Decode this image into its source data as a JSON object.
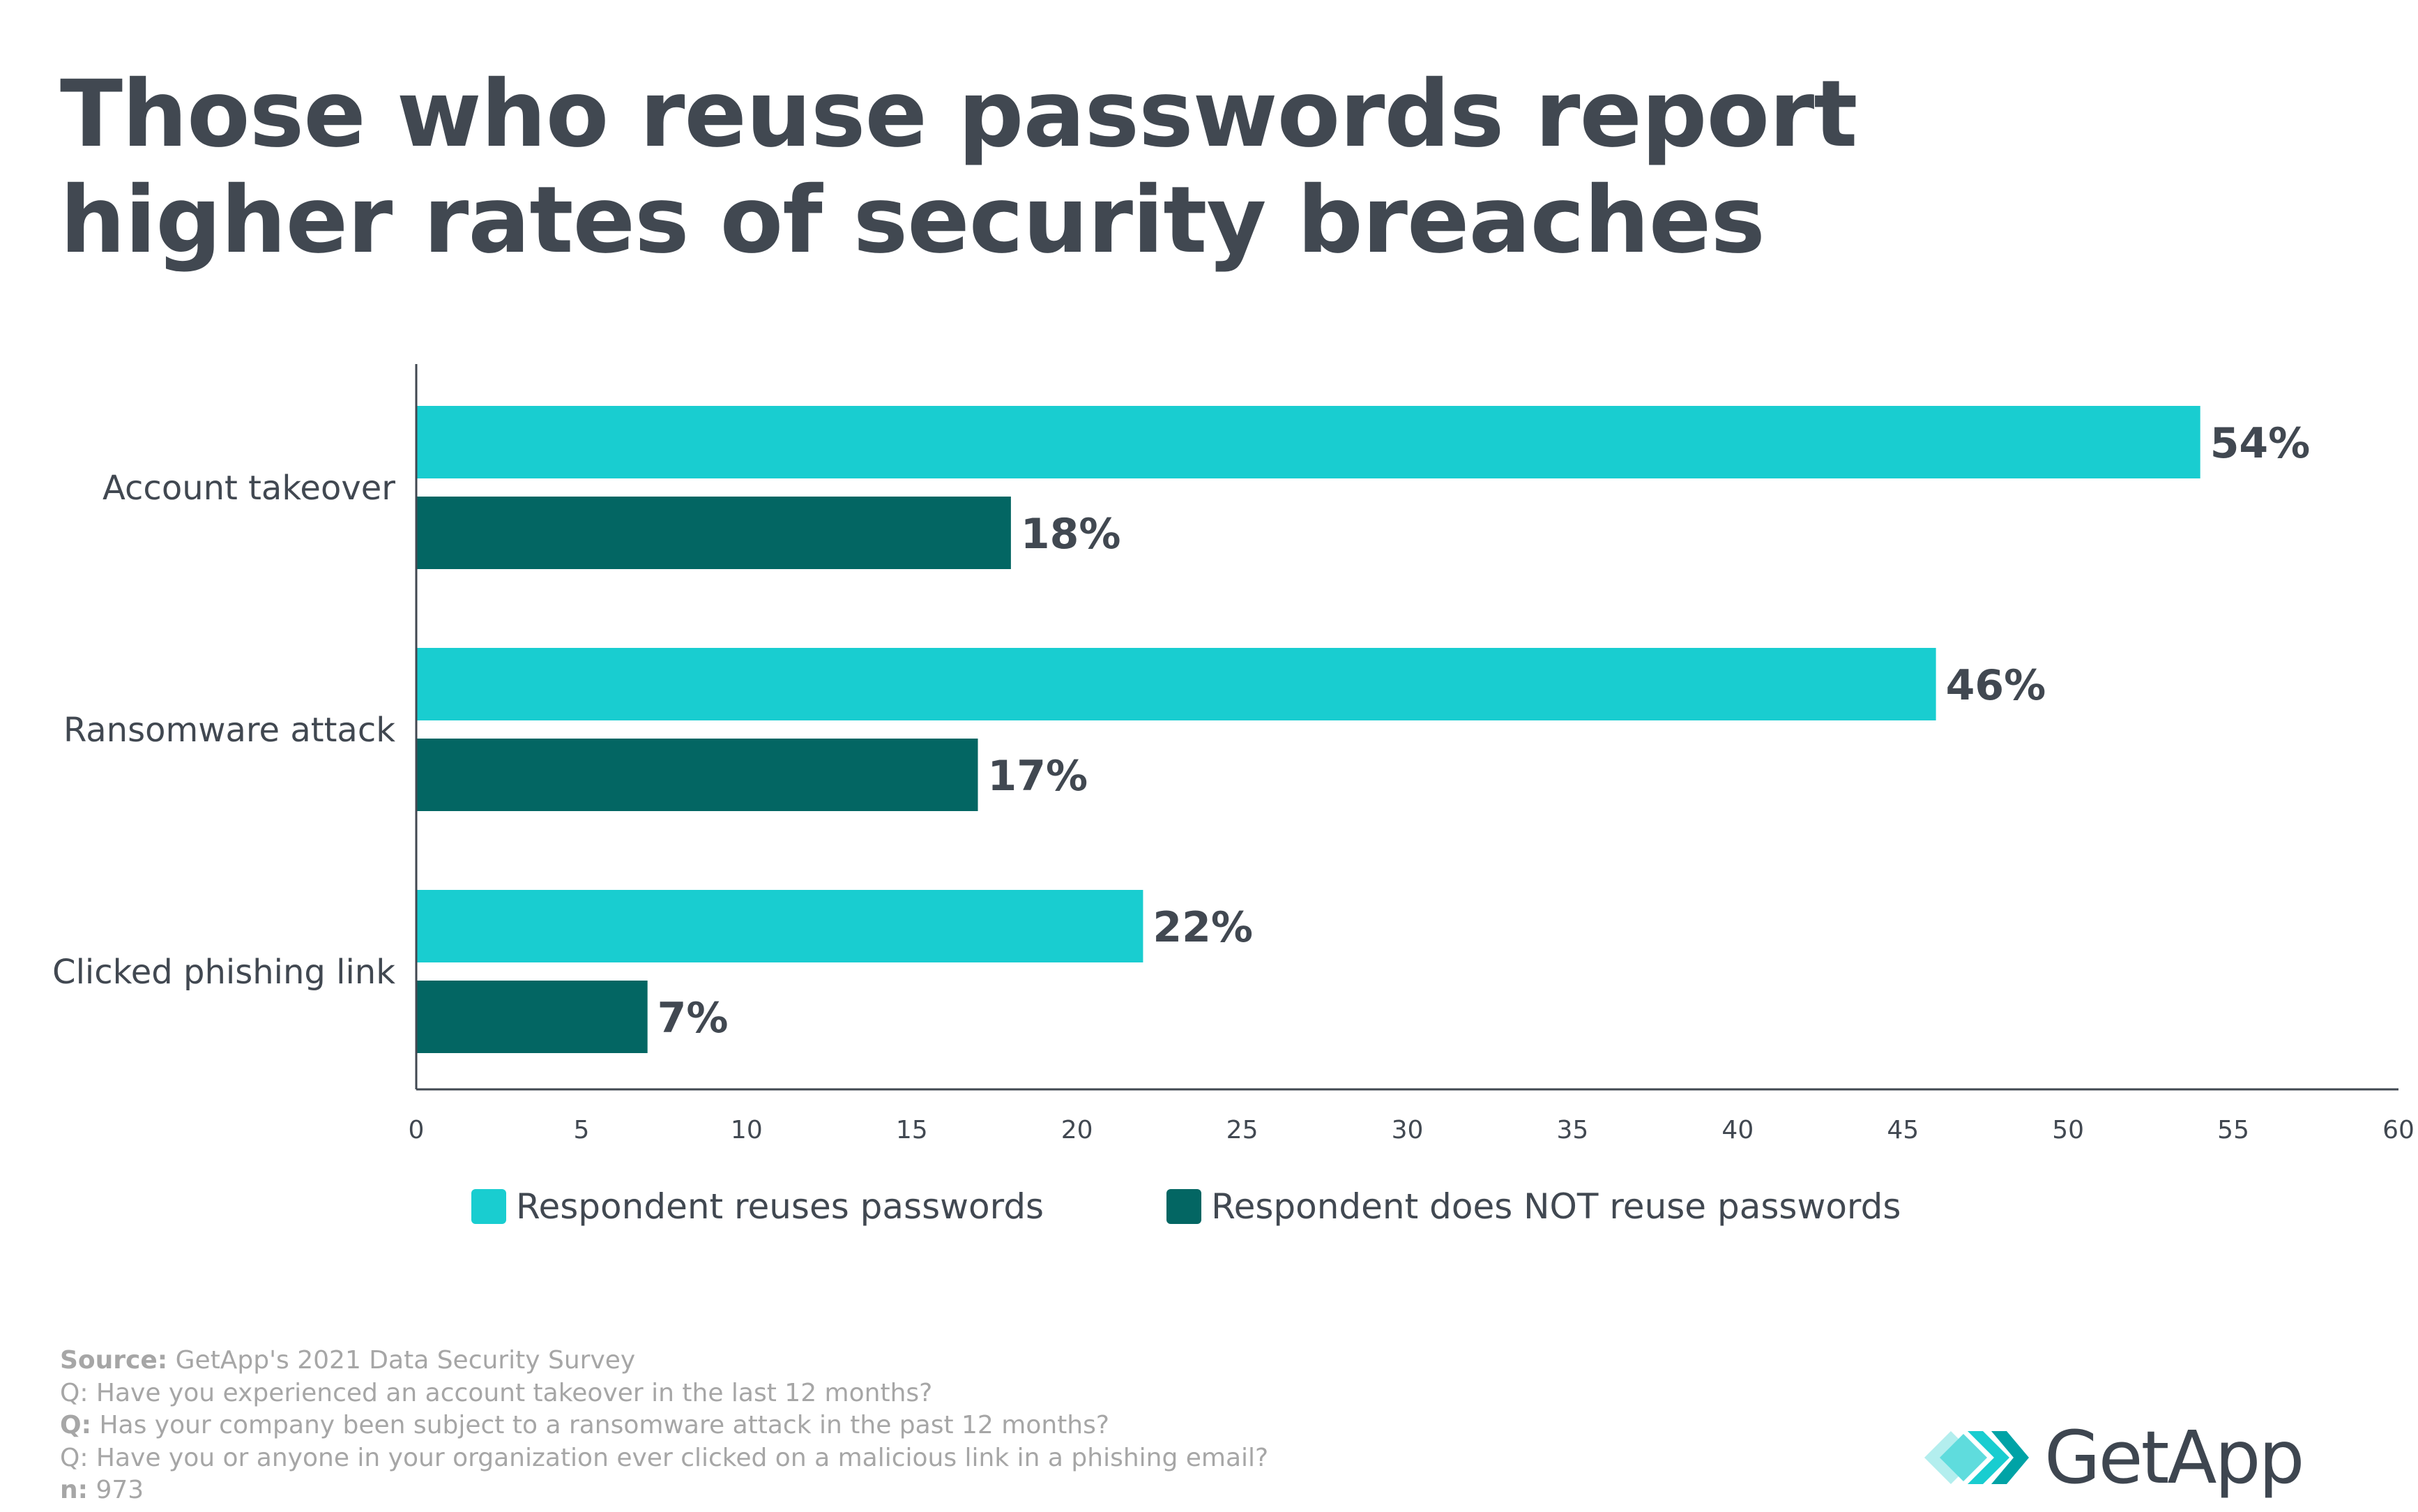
{
  "title_lines": [
    "Those who reuse passwords report",
    "higher rates of security breaches"
  ],
  "colors": {
    "reuse": "#19cdd0",
    "not_reuse": "#036663",
    "text": "#414851",
    "footer": "#a6a6a6"
  },
  "chart_data": {
    "type": "bar",
    "orientation": "horizontal",
    "categories": [
      "Account takeover",
      "Ransomware attack",
      "Clicked phishing link"
    ],
    "series": [
      {
        "name": "Respondent reuses passwords",
        "values": [
          54,
          46,
          22
        ],
        "labels": [
          "54%",
          "46%",
          "22%"
        ]
      },
      {
        "name": "Respondent does NOT reuse passwords",
        "values": [
          18,
          17,
          7
        ],
        "labels": [
          "18%",
          "17%",
          "7%"
        ]
      }
    ],
    "xlim": [
      0,
      60
    ],
    "xticks": [
      0,
      5,
      10,
      15,
      20,
      25,
      30,
      35,
      40,
      45,
      50,
      55,
      60
    ],
    "legend_position": "bottom",
    "grid": false
  },
  "legend": {
    "items": [
      {
        "label": "Respondent reuses passwords"
      },
      {
        "label": "Respondent does NOT reuse passwords"
      }
    ]
  },
  "footer": {
    "source_label": "Source:",
    "source_text": " GetApp's 2021 Data Security Survey",
    "q1": "Q: Have you experienced an account takeover in the last 12 months?",
    "q2_label": "Q:",
    "q2_text": " Has your company been subject to a ransomware attack in the past 12 months?",
    "q3": "Q: Have you or anyone in your organization ever clicked on a malicious link in a phishing email?",
    "n_label": "n:",
    "n_text": " 973"
  },
  "logo": {
    "text": "GetApp",
    "icon": "getapp-chevrons-icon"
  }
}
